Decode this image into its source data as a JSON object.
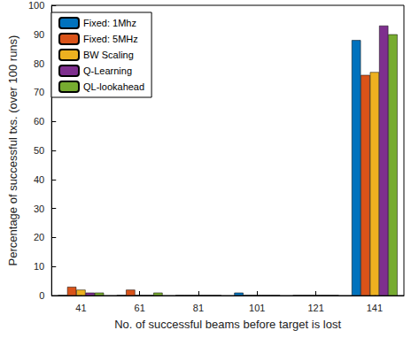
{
  "chart_data": {
    "type": "bar",
    "x_label": "No. of successful beams before target is lost",
    "y_label": "Percentage of successful txs. (over 100 runs)",
    "categories": [
      "41",
      "61",
      "81",
      "101",
      "121",
      "141"
    ],
    "series": [
      {
        "name": "Fixed: 1Mhz",
        "color": "#0072BD",
        "values": [
          0,
          0,
          0,
          1,
          0,
          88
        ]
      },
      {
        "name": "Fixed: 5MHz",
        "color": "#D95319",
        "values": [
          3,
          2,
          0,
          0,
          0,
          76
        ]
      },
      {
        "name": "BW Scaling",
        "color": "#EDB120",
        "values": [
          2,
          0,
          0,
          0,
          0,
          77
        ]
      },
      {
        "name": "Q-Learning",
        "color": "#7E2F8E",
        "values": [
          1,
          0,
          0,
          0,
          0,
          93
        ]
      },
      {
        "name": "QL-lookahead",
        "color": "#77AC30",
        "values": [
          1,
          1,
          0,
          0,
          0,
          90
        ]
      }
    ],
    "ylim": [
      0,
      100
    ],
    "yticks": [
      0,
      10,
      20,
      30,
      40,
      50,
      60,
      70,
      80,
      90,
      100
    ],
    "grid": false,
    "legend": "top-left"
  }
}
